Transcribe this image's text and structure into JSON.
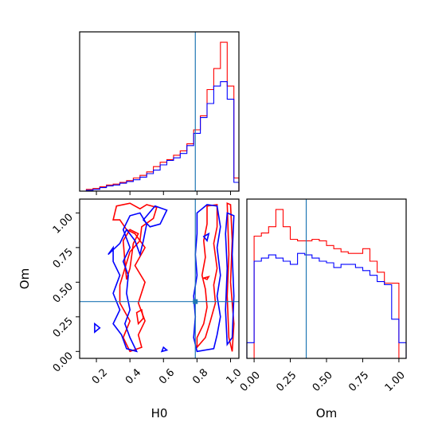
{
  "colors": {
    "red_series": "#ff0000",
    "blue_series": "#0000ff",
    "truth_line": "#1f77b4"
  },
  "chart_data": {
    "type": "corner",
    "parameters": [
      "H0",
      "Om"
    ],
    "truth": {
      "H0": 0.79,
      "Om": 0.36
    },
    "panels": [
      {
        "id": "hist-H0",
        "type": "histogram",
        "xlim": [
          0.1,
          1.05
        ],
        "y_ticks_shown": false,
        "bin_edges": [
          0.1,
          0.14,
          0.18,
          0.22,
          0.26,
          0.3,
          0.34,
          0.38,
          0.42,
          0.46,
          0.5,
          0.54,
          0.58,
          0.62,
          0.66,
          0.7,
          0.74,
          0.78,
          0.82,
          0.86,
          0.9,
          0.94,
          0.98,
          1.02,
          1.05
        ],
        "series": [
          {
            "color": "red",
            "counts": [
              0,
              2,
              3,
              5,
              7,
              8,
              10,
              12,
              15,
              18,
              22,
              28,
              33,
              36,
              41,
              46,
              54,
              70,
              86,
              116,
              140,
              170,
              120,
              15
            ]
          },
          {
            "color": "blue",
            "counts": [
              0,
              1,
              2,
              4,
              6,
              7,
              9,
              11,
              13,
              16,
              20,
              24,
              30,
              35,
              38,
              43,
              52,
              66,
              84,
              100,
              120,
              125,
              105,
              10
            ]
          }
        ]
      },
      {
        "id": "hist-Om",
        "type": "histogram",
        "xlim": [
          -0.05,
          1.05
        ],
        "y_ticks_shown": false,
        "x_ticks": [
          0.0,
          0.25,
          0.5,
          0.75,
          1.0
        ],
        "x_tick_labels": [
          "0.00",
          "0.25",
          "0.50",
          "0.75",
          "1.00"
        ],
        "xlabel": "Om",
        "bin_edges": [
          -0.05,
          0.0,
          0.05,
          0.1,
          0.15,
          0.2,
          0.25,
          0.3,
          0.35,
          0.4,
          0.45,
          0.5,
          0.55,
          0.6,
          0.65,
          0.7,
          0.75,
          0.8,
          0.85,
          0.9,
          0.95,
          1.0,
          1.05
        ],
        "series": [
          {
            "color": "red",
            "counts": [
              0,
              78,
              80,
              84,
              95,
              84,
              76,
              75,
              75,
              76,
              75,
              72,
              70,
              68,
              67,
              67,
              70,
              62,
              55,
              48,
              48,
              0
            ]
          },
          {
            "color": "blue",
            "counts": [
              10,
              62,
              64,
              66,
              64,
              62,
              60,
              67,
              66,
              64,
              62,
              61,
              58,
              60,
              60,
              58,
              56,
              53,
              49,
              47,
              25,
              10
            ]
          }
        ]
      },
      {
        "id": "scatter-H0-Om",
        "type": "contour",
        "xlim": [
          0.1,
          1.05
        ],
        "ylim": [
          -0.05,
          1.1
        ],
        "x_ticks": [
          0.2,
          0.4,
          0.6,
          0.8,
          1.0
        ],
        "x_tick_labels": [
          "0.2",
          "0.4",
          "0.6",
          "0.8",
          "1.0"
        ],
        "y_ticks": [
          0.0,
          0.25,
          0.5,
          0.75,
          1.0
        ],
        "y_tick_labels": [
          "0.00",
          "0.25",
          "0.50",
          "0.75",
          "1.00"
        ],
        "xlabel": "H0",
        "ylabel": "Om",
        "series": [
          {
            "color": "red",
            "contours": [
              [
                [
                  0.3,
                  0.95
                ],
                [
                  0.32,
                  1.05
                ],
                [
                  0.4,
                  1.07
                ],
                [
                  0.46,
                  1.03
                ],
                [
                  0.5,
                  1.06
                ],
                [
                  0.56,
                  1.04
                ],
                [
                  0.54,
                  0.96
                ],
                [
                  0.47,
                  0.9
                ],
                [
                  0.46,
                  0.8
                ],
                [
                  0.4,
                  0.72
                ],
                [
                  0.37,
                  0.6
                ],
                [
                  0.34,
                  0.48
                ],
                [
                  0.34,
                  0.35
                ],
                [
                  0.4,
                  0.22
                ],
                [
                  0.36,
                  0.1
                ],
                [
                  0.4,
                  0.0
                ],
                [
                  0.47,
                  0.03
                ],
                [
                  0.45,
                  0.12
                ],
                [
                  0.49,
                  0.22
                ],
                [
                  0.45,
                  0.35
                ],
                [
                  0.49,
                  0.5
                ],
                [
                  0.43,
                  0.62
                ],
                [
                  0.49,
                  0.75
                ],
                [
                  0.43,
                  0.85
                ],
                [
                  0.38,
                  0.88
                ],
                [
                  0.34,
                  0.95
                ],
                [
                  0.3,
                  0.95
                ]
              ],
              [
                [
                  0.36,
                  0.8
                ],
                [
                  0.4,
                  0.88
                ],
                [
                  0.45,
                  0.85
                ],
                [
                  0.42,
                  0.78
                ],
                [
                  0.4,
                  0.6
                ],
                [
                  0.38,
                  0.52
                ],
                [
                  0.37,
                  0.65
                ],
                [
                  0.36,
                  0.8
                ]
              ],
              [
                [
                  0.44,
                  0.28
                ],
                [
                  0.47,
                  0.3
                ],
                [
                  0.48,
                  0.24
                ],
                [
                  0.45,
                  0.2
                ],
                [
                  0.44,
                  0.28
                ]
              ],
              [
                [
                  0.86,
                  1.05
                ],
                [
                  0.92,
                  1.06
                ],
                [
                  0.92,
                  0.9
                ],
                [
                  0.9,
                  0.78
                ],
                [
                  0.92,
                  0.6
                ],
                [
                  0.9,
                  0.48
                ],
                [
                  0.91,
                  0.35
                ],
                [
                  0.88,
                  0.22
                ],
                [
                  0.85,
                  0.1
                ],
                [
                  0.8,
                  0.03
                ],
                [
                  0.8,
                  0.1
                ],
                [
                  0.84,
                  0.2
                ],
                [
                  0.86,
                  0.32
                ],
                [
                  0.85,
                  0.45
                ],
                [
                  0.83,
                  0.55
                ],
                [
                  0.85,
                  0.68
                ],
                [
                  0.84,
                  0.8
                ],
                [
                  0.86,
                  0.92
                ],
                [
                  0.86,
                  1.05
                ]
              ],
              [
                [
                  0.98,
                  1.07
                ],
                [
                  1.0,
                  1.06
                ],
                [
                  1.01,
                  0.8
                ],
                [
                  1.0,
                  0.5
                ],
                [
                  1.02,
                  0.2
                ],
                [
                  1.01,
                  0.0
                ],
                [
                  0.99,
                  0.1
                ],
                [
                  0.98,
                  0.4
                ],
                [
                  0.99,
                  0.7
                ],
                [
                  0.98,
                  1.07
                ]
              ],
              [
                [
                  0.84,
                  0.53
                ],
                [
                  0.87,
                  0.54
                ],
                [
                  0.86,
                  0.52
                ],
                [
                  0.84,
                  0.53
                ]
              ]
            ]
          },
          {
            "color": "blue",
            "contours": [
              [
                [
                  0.27,
                  0.7
                ],
                [
                  0.3,
                  0.75
                ],
                [
                  0.3,
                  0.65
                ],
                [
                  0.34,
                  0.55
                ],
                [
                  0.3,
                  0.42
                ],
                [
                  0.34,
                  0.3
                ],
                [
                  0.3,
                  0.2
                ],
                [
                  0.35,
                  0.12
                ],
                [
                  0.38,
                  0.02
                ],
                [
                  0.44,
                  0.0
                ],
                [
                  0.4,
                  0.1
                ],
                [
                  0.37,
                  0.2
                ],
                [
                  0.4,
                  0.3
                ],
                [
                  0.38,
                  0.42
                ],
                [
                  0.39,
                  0.55
                ],
                [
                  0.36,
                  0.65
                ],
                [
                  0.4,
                  0.75
                ],
                [
                  0.36,
                  0.88
                ],
                [
                  0.4,
                  0.98
                ],
                [
                  0.46,
                  1.0
                ],
                [
                  0.5,
                  0.92
                ],
                [
                  0.48,
                  0.8
                ],
                [
                  0.46,
                  0.7
                ],
                [
                  0.43,
                  0.8
                ],
                [
                  0.38,
                  0.88
                ],
                [
                  0.34,
                  0.78
                ],
                [
                  0.27,
                  0.7
                ]
              ],
              [
                [
                  0.48,
                  0.95
                ],
                [
                  0.55,
                  1.05
                ],
                [
                  0.62,
                  1.02
                ],
                [
                  0.58,
                  0.92
                ],
                [
                  0.52,
                  0.9
                ],
                [
                  0.48,
                  0.95
                ]
              ],
              [
                [
                  0.19,
                  0.2
                ],
                [
                  0.22,
                  0.17
                ],
                [
                  0.19,
                  0.14
                ],
                [
                  0.19,
                  0.2
                ]
              ],
              [
                [
                  0.8,
                  1.0
                ],
                [
                  0.86,
                  1.06
                ],
                [
                  0.92,
                  1.05
                ],
                [
                  0.94,
                  0.9
                ],
                [
                  0.92,
                  0.75
                ],
                [
                  0.94,
                  0.55
                ],
                [
                  0.92,
                  0.4
                ],
                [
                  0.94,
                  0.25
                ],
                [
                  0.92,
                  0.12
                ],
                [
                  0.9,
                  0.02
                ],
                [
                  0.8,
                  0.0
                ],
                [
                  0.78,
                  0.1
                ],
                [
                  0.79,
                  0.25
                ],
                [
                  0.78,
                  0.4
                ],
                [
                  0.8,
                  0.55
                ],
                [
                  0.79,
                  0.7
                ],
                [
                  0.8,
                  0.85
                ],
                [
                  0.8,
                  1.0
                ]
              ],
              [
                [
                  0.98,
                  1.0
                ],
                [
                  1.02,
                  0.98
                ],
                [
                  1.01,
                  0.7
                ],
                [
                  1.02,
                  0.4
                ],
                [
                  1.01,
                  0.1
                ],
                [
                  0.98,
                  0.05
                ],
                [
                  0.97,
                  0.3
                ],
                [
                  0.98,
                  0.6
                ],
                [
                  0.97,
                  0.85
                ],
                [
                  0.98,
                  1.0
                ]
              ],
              [
                [
                  0.6,
                  0.03
                ],
                [
                  0.62,
                  0.01
                ],
                [
                  0.59,
                  0.0
                ],
                [
                  0.6,
                  0.03
                ]
              ],
              [
                [
                  0.84,
                  0.83
                ],
                [
                  0.87,
                  0.85
                ],
                [
                  0.86,
                  0.8
                ],
                [
                  0.84,
                  0.83
                ]
              ]
            ]
          }
        ]
      }
    ]
  }
}
